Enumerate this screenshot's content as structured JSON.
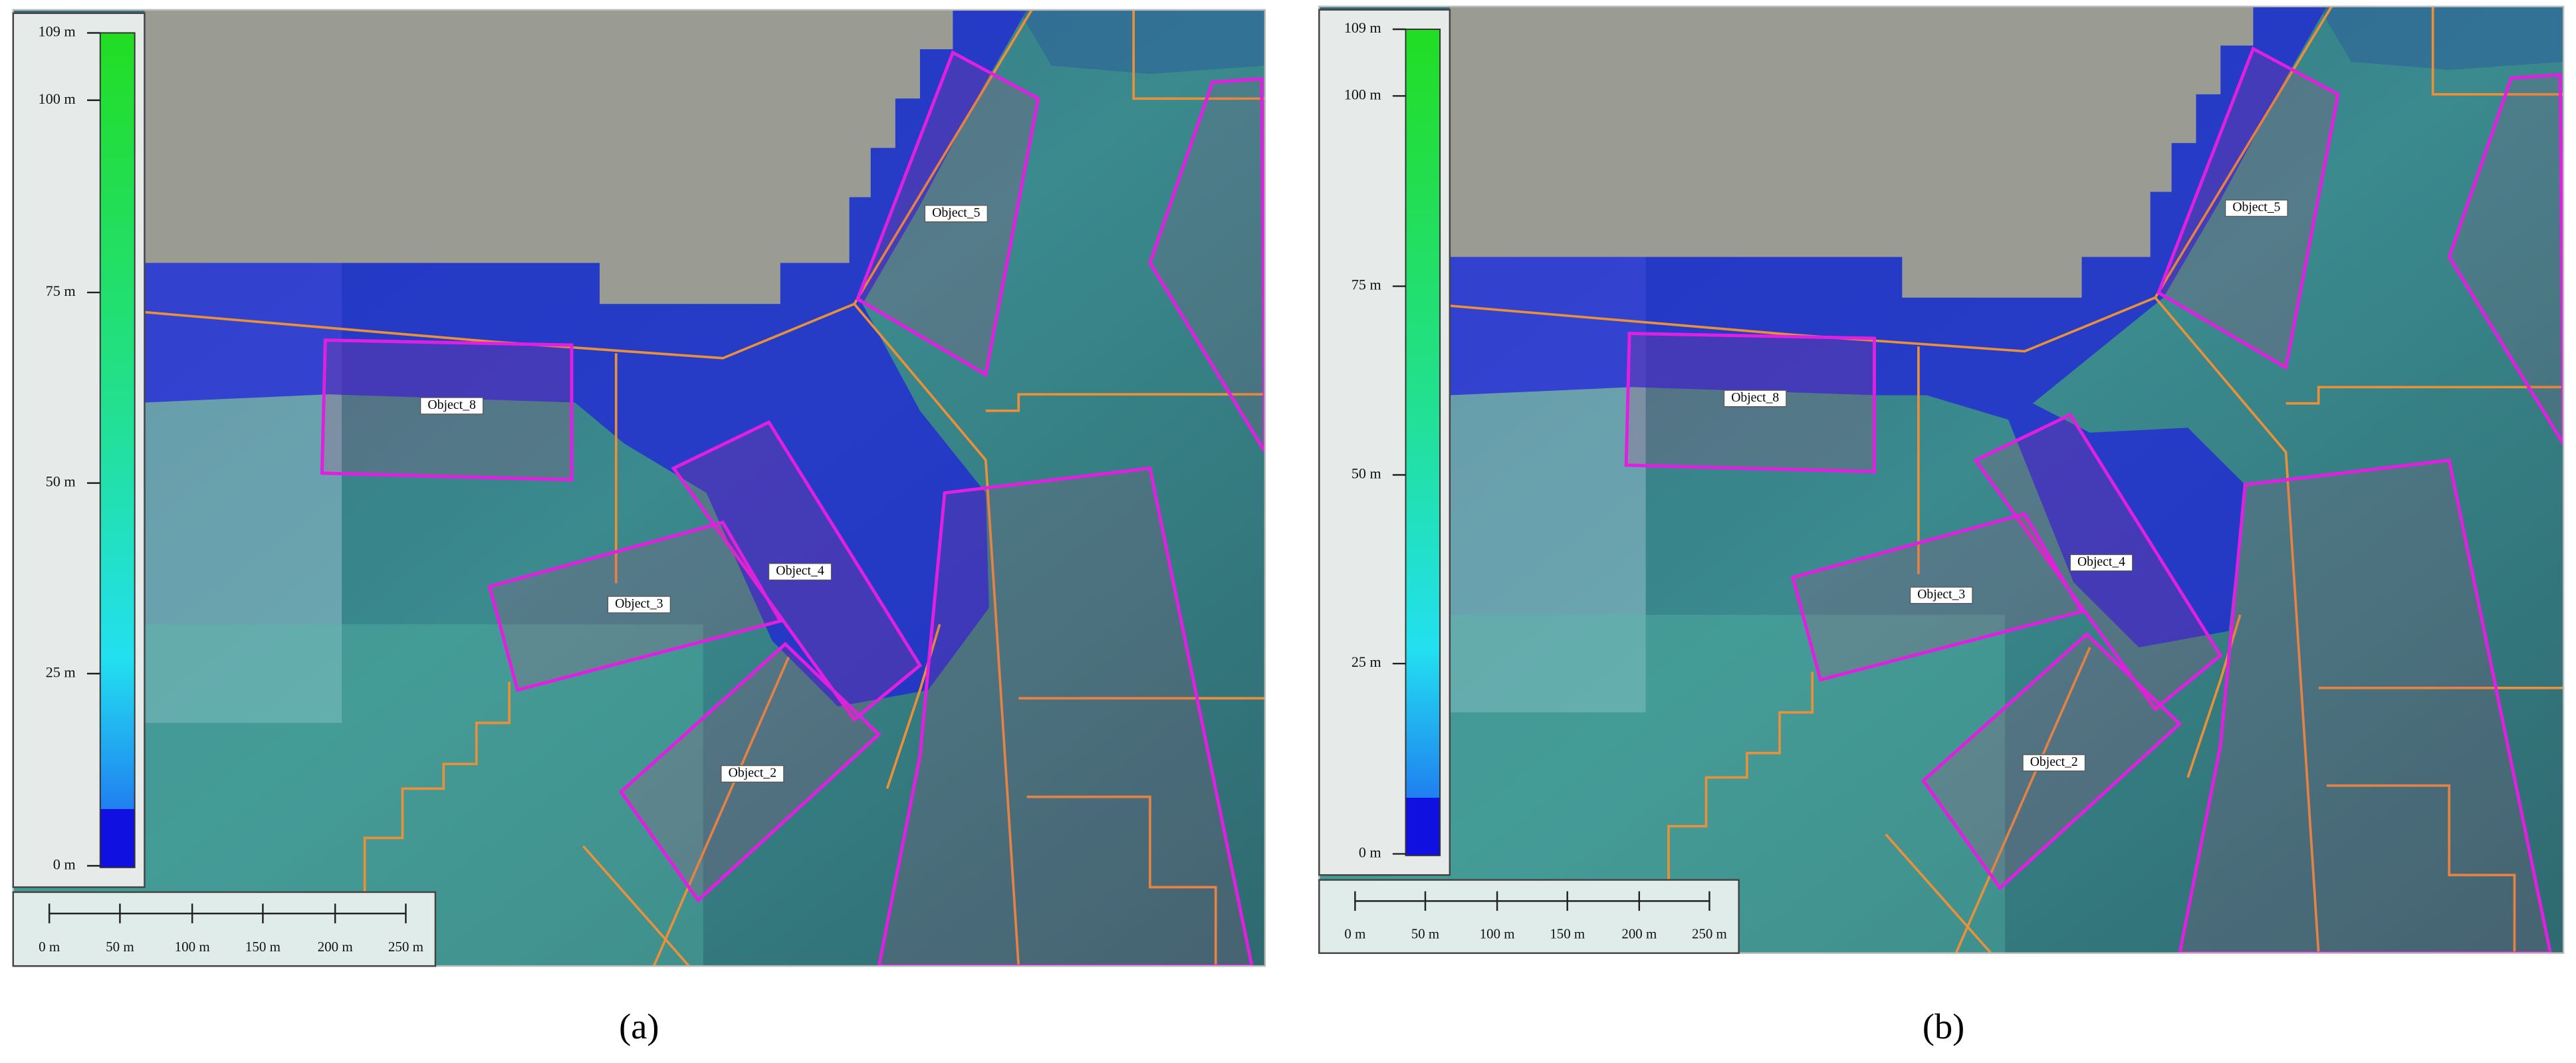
{
  "panels": [
    {
      "caption": "(a)",
      "legend": {
        "labels": [
          "109 m",
          "100 m",
          "75 m",
          "50 m",
          "25 m",
          "0 m"
        ]
      },
      "scale_bar": {
        "labels": [
          "0 m",
          "50 m",
          "100 m",
          "150 m",
          "200 m",
          "250 m"
        ]
      },
      "objects": [
        "Object_5",
        "Object_8",
        "Object_4",
        "Object_3",
        "Object_2"
      ]
    },
    {
      "caption": "(b)",
      "legend": {
        "labels": [
          "109 m",
          "100 m",
          "75 m",
          "50 m",
          "25 m",
          "0 m"
        ]
      },
      "scale_bar": {
        "labels": [
          "0 m",
          "50 m",
          "100 m",
          "150 m",
          "200 m",
          "250 m"
        ]
      },
      "objects": [
        "Object_5",
        "Object_8",
        "Object_4",
        "Object_3",
        "Object_2"
      ]
    }
  ]
}
